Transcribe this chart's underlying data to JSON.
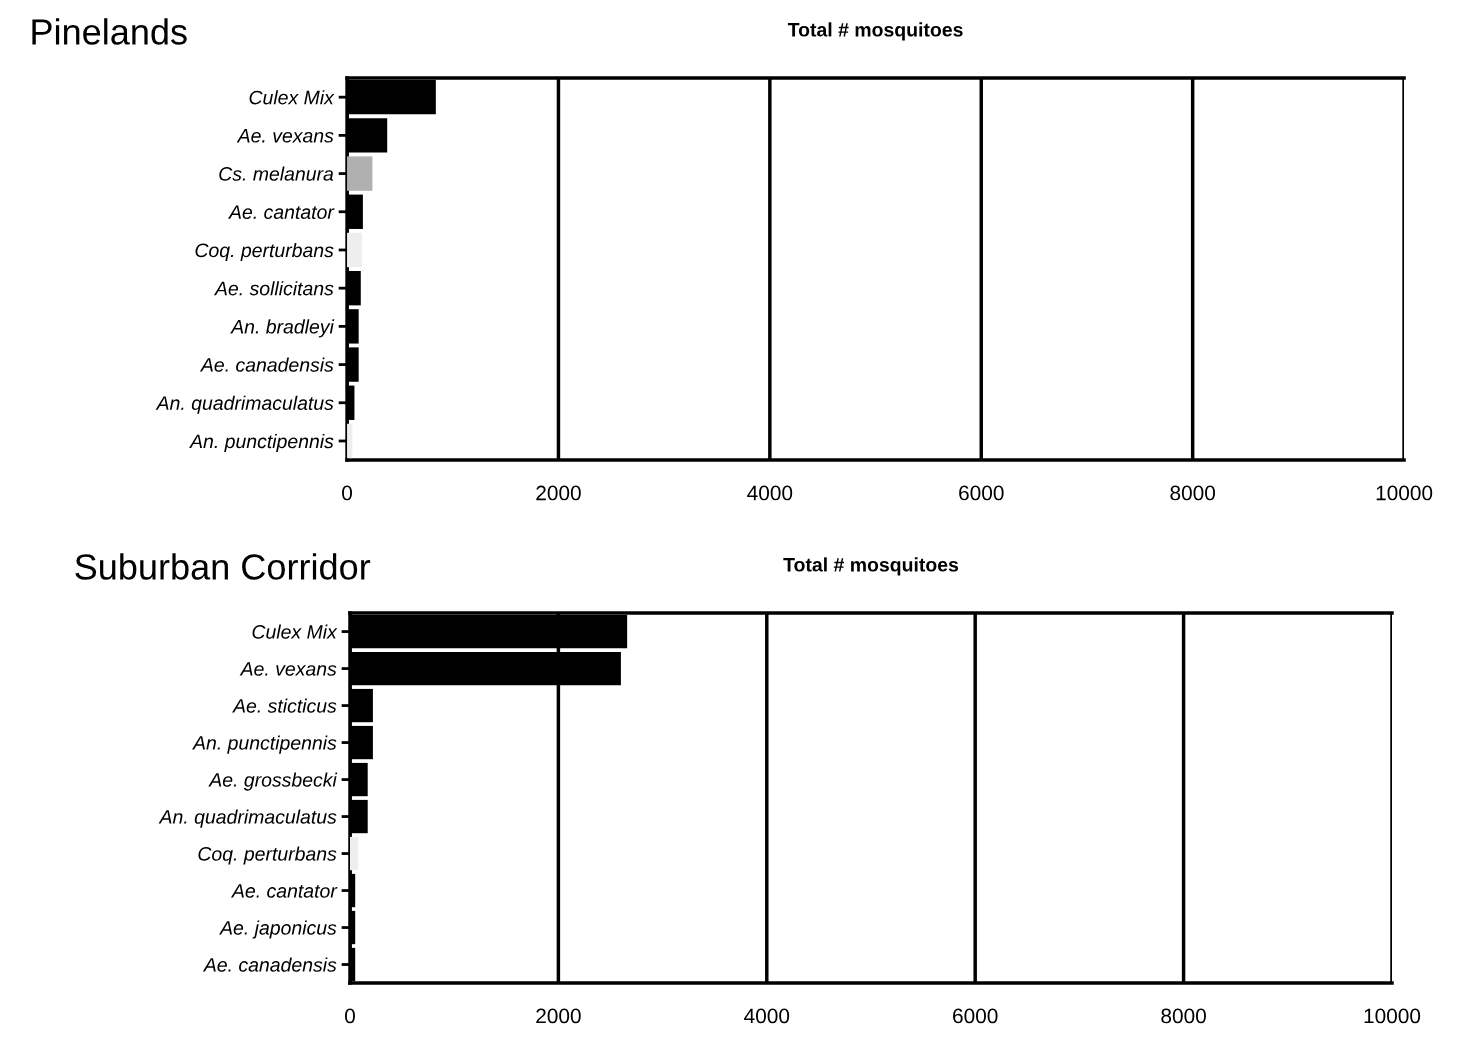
{
  "chart_data": [
    {
      "type": "bar",
      "title": "Pinelands",
      "xlabel": "Total # mosquitoes",
      "orientation": "horizontal",
      "categories": [
        "Culex Mix",
        "Ae. vexans",
        "Cs. melanura",
        "Ae. cantator",
        "Coq. perturbans",
        "Ae. sollicitans",
        "An. bradleyi",
        "Ae. canadensis",
        "An. quadrimaculatus",
        "An. punctipennis"
      ],
      "values": [
        840,
        380,
        240,
        150,
        140,
        130,
        110,
        110,
        70,
        50
      ],
      "colors": [
        "#000000",
        "#000000",
        "#b0b0b0",
        "#000000",
        "#eeeeee",
        "#000000",
        "#000000",
        "#000000",
        "#000000",
        "#eeeeee"
      ],
      "xlim": [
        0,
        10000
      ],
      "xticks": [
        0,
        2000,
        4000,
        6000,
        8000,
        10000
      ],
      "grid": "x"
    },
    {
      "type": "bar",
      "title": "Suburban Corridor",
      "xlabel": "Total # mosquitoes",
      "orientation": "horizontal",
      "categories": [
        "Culex Mix",
        "Ae. vexans",
        "Ae. sticticus",
        "An. punctipennis",
        "Ae. grossbecki",
        "An. quadrimaculatus",
        "Coq. perturbans",
        "Ae. cantator",
        "Ae. japonicus",
        "Ae. canadensis"
      ],
      "values": [
        2660,
        2600,
        220,
        220,
        170,
        170,
        80,
        50,
        50,
        50
      ],
      "colors": [
        "#000000",
        "#000000",
        "#000000",
        "#000000",
        "#000000",
        "#000000",
        "#eeeeee",
        "#000000",
        "#000000",
        "#000000"
      ],
      "xlim": [
        0,
        10000
      ],
      "xticks": [
        0,
        2000,
        4000,
        6000,
        8000,
        10000
      ],
      "grid": "x"
    }
  ]
}
